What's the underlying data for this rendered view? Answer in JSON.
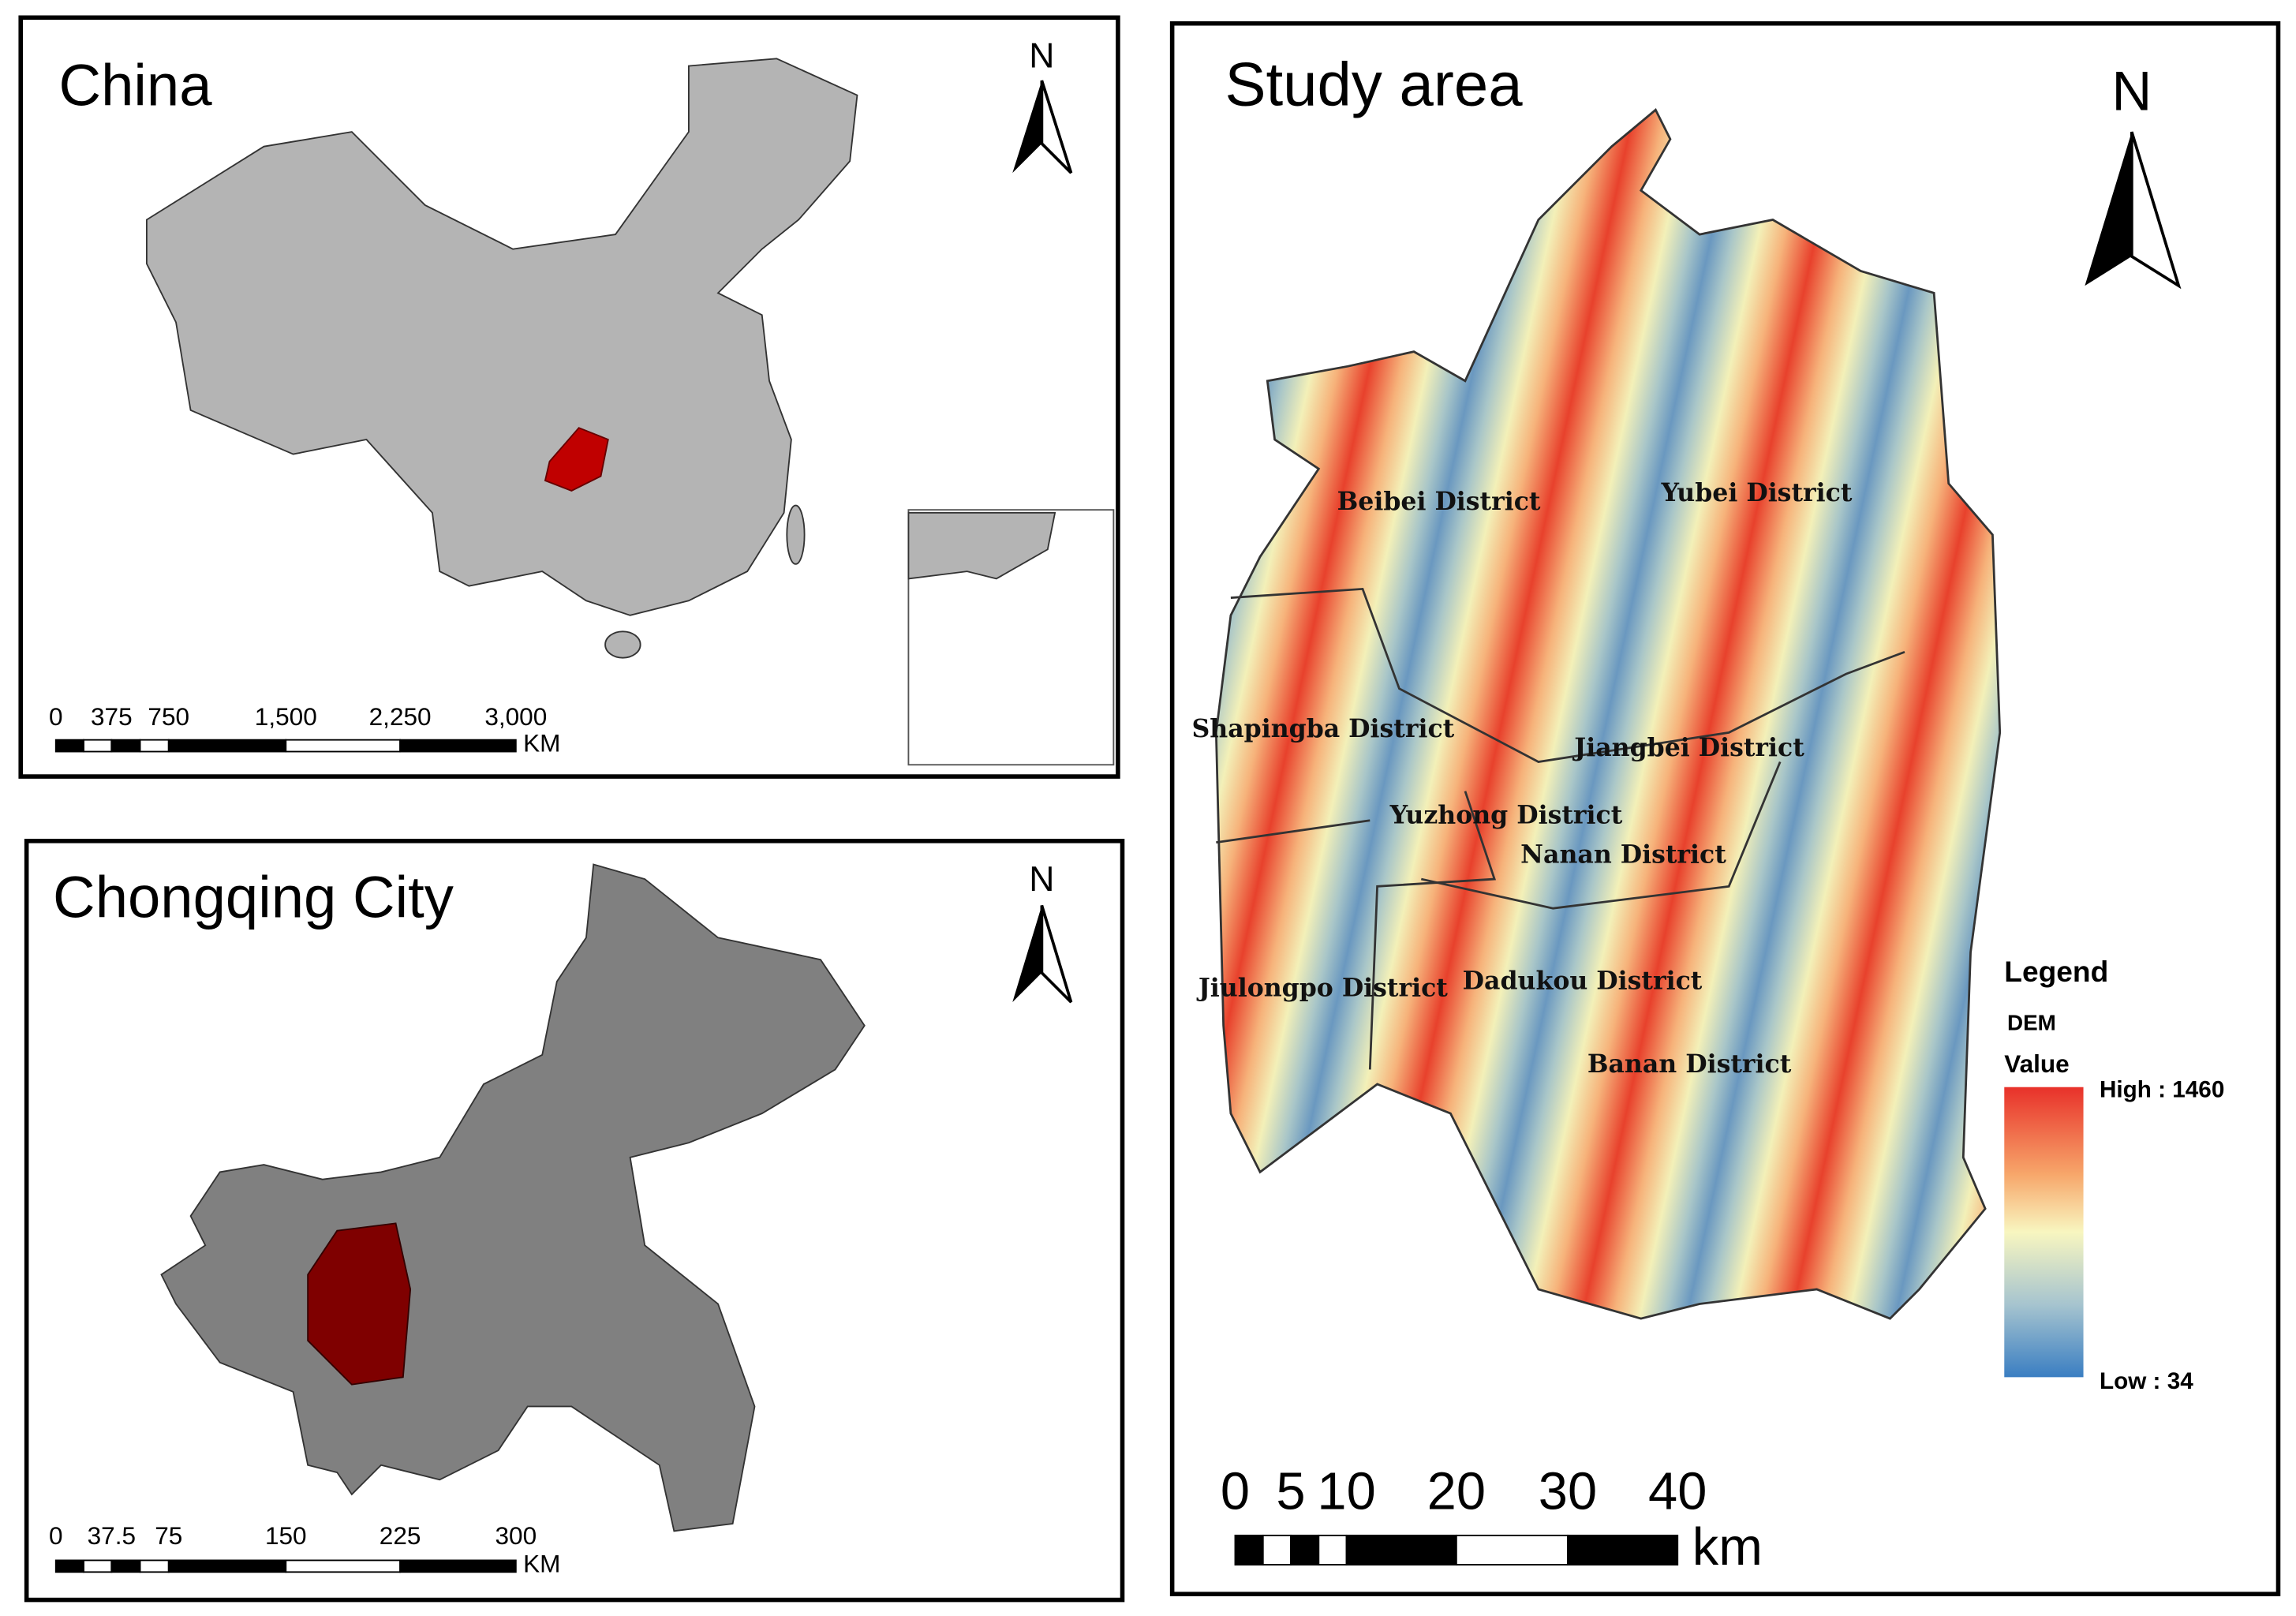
{
  "panels": [
    {
      "title": "China",
      "north": "N",
      "scale": {
        "labels": [
          "0",
          "375",
          "750",
          "1,500",
          "2,250",
          "3,000"
        ],
        "unit": "KM"
      }
    },
    {
      "title": "Chongqing City",
      "north": "N",
      "scale": {
        "labels": [
          "0",
          "37.5",
          "75",
          "150",
          "225",
          "300"
        ],
        "unit": "KM"
      }
    },
    {
      "title": "Study area",
      "north": "N",
      "districts": [
        "Beibei District",
        "Yubei District",
        "Shapingba District",
        "Jiangbei District",
        "Yuzhong District",
        "Nanan District",
        "Jiulongpo District",
        "Dadukou District",
        "Banan District"
      ],
      "legend": {
        "title": "Legend",
        "layer": "DEM",
        "field": "Value",
        "high": "High : 1460",
        "low": "Low : 34"
      },
      "scale": {
        "labels": [
          "0",
          "5",
          "10",
          "20",
          "30",
          "40"
        ],
        "unit": "km"
      }
    }
  ]
}
